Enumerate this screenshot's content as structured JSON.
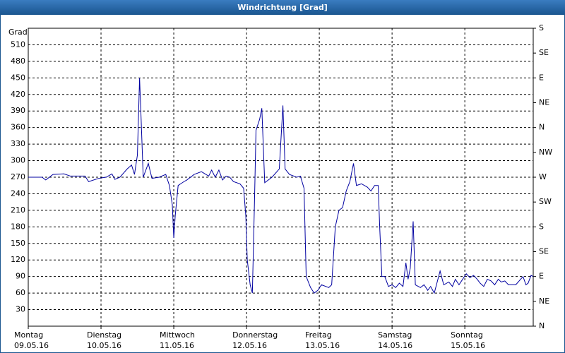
{
  "chart_data": {
    "type": "line",
    "title": "Windrichtung [Grad]",
    "y_label": "Grad",
    "x": [
      0,
      0.19,
      0.24,
      0.34,
      0.49,
      0.58,
      0.78,
      0.83,
      0.97,
      1.07,
      1.15,
      1.19,
      1.26,
      1.36,
      1.42,
      1.46,
      1.5,
      1.53,
      1.55,
      1.58,
      1.65,
      1.7,
      1.8,
      1.89,
      1.94,
      1.98,
      2.0,
      2.02,
      2.06,
      2.14,
      2.18,
      2.28,
      2.38,
      2.48,
      2.52,
      2.57,
      2.62,
      2.67,
      2.72,
      2.77,
      2.82,
      2.91,
      2.96,
      2.99,
      3.01,
      3.05,
      3.08,
      3.11,
      3.13,
      3.18,
      3.21,
      3.25,
      3.35,
      3.45,
      3.5,
      3.53,
      3.59,
      3.69,
      3.74,
      3.79,
      3.82,
      3.88,
      3.93,
      3.98,
      4.03,
      4.13,
      4.17,
      4.22,
      4.27,
      4.32,
      4.37,
      4.42,
      4.47,
      4.51,
      4.58,
      4.66,
      4.71,
      4.76,
      4.81,
      4.83,
      4.86,
      4.9,
      4.95,
      5.0,
      5.05,
      5.1,
      5.15,
      5.19,
      5.22,
      5.25,
      5.29,
      5.32,
      5.39,
      5.44,
      5.49,
      5.53,
      5.58,
      5.63,
      5.66,
      5.71,
      5.78,
      5.83,
      5.87,
      5.92,
      5.97,
      6.02,
      6.07,
      6.12,
      6.17,
      6.21,
      6.26,
      6.31,
      6.36,
      6.41,
      6.46,
      6.5,
      6.55,
      6.6,
      6.7,
      6.8,
      6.84,
      6.87,
      6.91,
      6.94
    ],
    "series": [
      {
        "name": "Windrichtung",
        "color": "#0000a0",
        "values": [
          270,
          270,
          265,
          275,
          276,
          272,
          272,
          262,
          268,
          270,
          276,
          266,
          270,
          285,
          292,
          275,
          310,
          450,
          380,
          270,
          295,
          268,
          270,
          275,
          255,
          220,
          160,
          200,
          255,
          262,
          265,
          275,
          280,
          272,
          283,
          270,
          283,
          265,
          272,
          270,
          262,
          258,
          250,
          200,
          120,
          75,
          60,
          230,
          355,
          375,
          395,
          260,
          270,
          285,
          400,
          285,
          275,
          270,
          272,
          250,
          90,
          70,
          60,
          65,
          75,
          70,
          75,
          180,
          210,
          215,
          245,
          262,
          295,
          255,
          258,
          252,
          245,
          255,
          255,
          180,
          90,
          90,
          72,
          75,
          70,
          78,
          72,
          115,
          85,
          105,
          190,
          75,
          70,
          75,
          65,
          72,
          60,
          85,
          100,
          75,
          80,
          72,
          85,
          75,
          85,
          95,
          88,
          92,
          85,
          78,
          72,
          85,
          82,
          75,
          85,
          80,
          82,
          75,
          75,
          90,
          75,
          78,
          92,
          90
        ]
      }
    ],
    "xlim": [
      0,
      6.94
    ],
    "xticks": [
      {
        "value": 0,
        "label": "Montag"
      },
      {
        "value": 1,
        "label": "Dienstag"
      },
      {
        "value": 2,
        "label": "Mittwoch"
      },
      {
        "value": 3,
        "label": "Donnerstag"
      },
      {
        "value": 4,
        "label": "Freitag"
      },
      {
        "value": 5,
        "label": "Samstag"
      },
      {
        "value": 6,
        "label": "Sonntag"
      }
    ],
    "xtick_dates": [
      "09.05.16",
      "10.05.16",
      "11.05.16",
      "12.05.16",
      "13.05.16",
      "14.05.16",
      "15.05.16"
    ],
    "ylim": [
      0,
      540
    ],
    "yticks": [
      30,
      60,
      90,
      120,
      150,
      180,
      210,
      240,
      270,
      300,
      330,
      360,
      390,
      420,
      450,
      480,
      510
    ],
    "y2lim": [
      0,
      540
    ],
    "y2ticks": [
      {
        "value": 0,
        "label": "N"
      },
      {
        "value": 45,
        "label": "NE"
      },
      {
        "value": 90,
        "label": "E"
      },
      {
        "value": 135,
        "label": "SE"
      },
      {
        "value": 180,
        "label": "S"
      },
      {
        "value": 225,
        "label": "SW"
      },
      {
        "value": 270,
        "label": "W"
      },
      {
        "value": 315,
        "label": "NW"
      },
      {
        "value": 360,
        "label": "N"
      },
      {
        "value": 405,
        "label": "NE"
      },
      {
        "value": 450,
        "label": "E"
      },
      {
        "value": 495,
        "label": "SE"
      },
      {
        "value": 540,
        "label": "S"
      }
    ],
    "grid": true
  }
}
